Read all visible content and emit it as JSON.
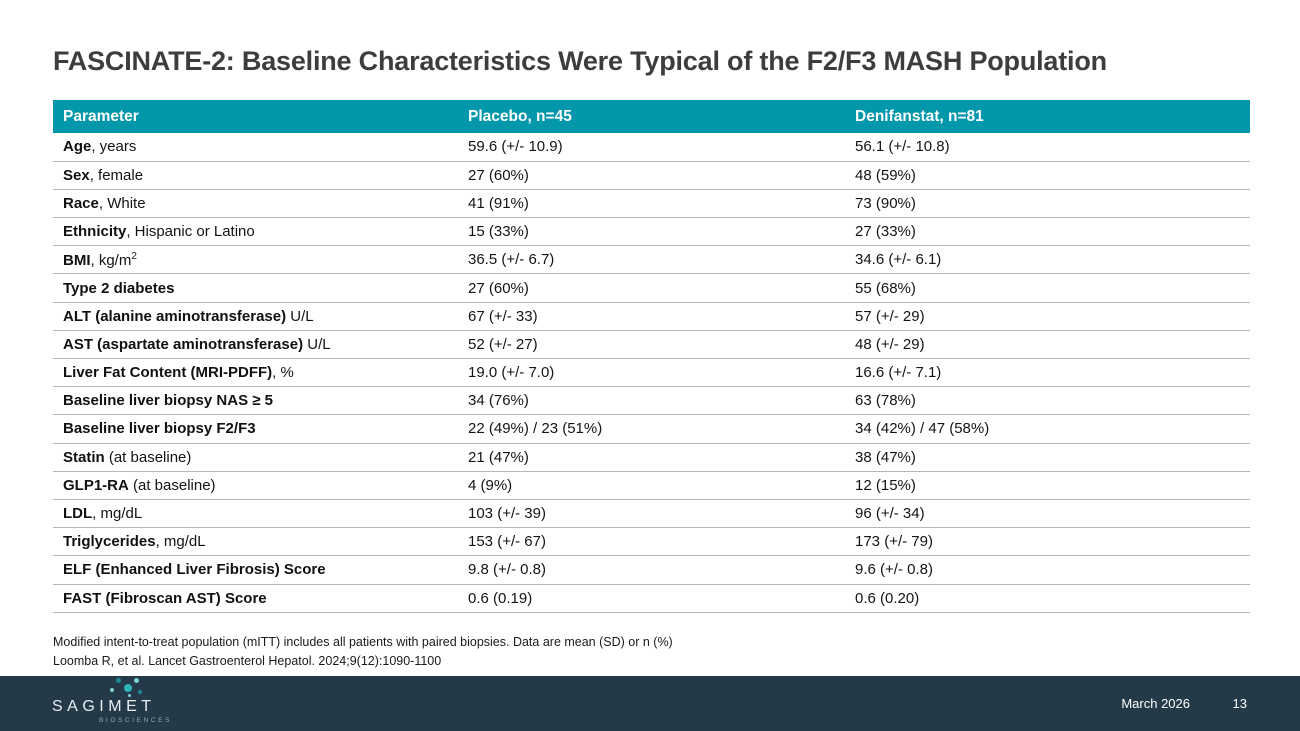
{
  "slide": {
    "title": "FASCINATE-2: Baseline Characteristics Were Typical of the F2/F3 MASH Population",
    "footnote1": "Modified intent-to-treat population (mITT) includes all patients with paired biopsies. Data are mean (SD) or n (%)",
    "footnote2": "Loomba R, et al. Lancet Gastroenterol Hepatol. 2024;9(12):1090-1100"
  },
  "table": {
    "headers": [
      "Parameter",
      "Placebo, n=45",
      "Denifanstat, n=81"
    ],
    "rows": [
      {
        "param_bold": "Age",
        "param_rest": ", years",
        "placebo": "59.6 (+/- 10.9)",
        "denifanstat": "56.1 (+/- 10.8)"
      },
      {
        "param_bold": "Sex",
        "param_rest": ", female",
        "placebo": "27 (60%)",
        "denifanstat": "48 (59%)"
      },
      {
        "param_bold": "Race",
        "param_rest": ", White",
        "placebo": "41 (91%)",
        "denifanstat": "73 (90%)"
      },
      {
        "param_bold": "Ethnicity",
        "param_rest": ", Hispanic or Latino",
        "placebo": "15 (33%)",
        "denifanstat": "27 (33%)"
      },
      {
        "param_bold": "BMI",
        "param_rest": ", kg/m",
        "param_sup": "2",
        "placebo": "36.5 (+/- 6.7)",
        "denifanstat": "34.6 (+/- 6.1)"
      },
      {
        "param_bold": "Type 2 diabetes",
        "param_rest": "",
        "placebo": "27 (60%)",
        "denifanstat": "55 (68%)"
      },
      {
        "param_bold": "ALT (alanine aminotransferase)",
        "param_rest": " U/L",
        "placebo": "67 (+/- 33)",
        "denifanstat": "57 (+/- 29)"
      },
      {
        "param_bold": "AST (aspartate aminotransferase)",
        "param_rest": " U/L",
        "placebo": "52 (+/- 27)",
        "denifanstat": "48 (+/- 29)"
      },
      {
        "param_bold": "Liver Fat Content (MRI-PDFF)",
        "param_rest": ", %",
        "placebo": "19.0 (+/- 7.0)",
        "denifanstat": "16.6 (+/- 7.1)"
      },
      {
        "param_bold": "Baseline liver biopsy NAS ≥ 5",
        "param_rest": "",
        "placebo": "34 (76%)",
        "denifanstat": "63 (78%)"
      },
      {
        "param_bold": "Baseline liver biopsy F2/F3",
        "param_rest": "",
        "placebo": "22 (49%) / 23 (51%)",
        "denifanstat": "34 (42%) / 47 (58%)"
      },
      {
        "param_bold": "Statin",
        "param_rest": " (at baseline)",
        "placebo": "21 (47%)",
        "denifanstat": "38 (47%)"
      },
      {
        "param_bold": "GLP1-RA",
        "param_rest": " (at baseline)",
        "placebo": "4 (9%)",
        "denifanstat": "12 (15%)"
      },
      {
        "param_bold": "LDL",
        "param_rest": ", mg/dL",
        "placebo": "103 (+/- 39)",
        "denifanstat": "96 (+/- 34)"
      },
      {
        "param_bold": "Triglycerides",
        "param_rest": ", mg/dL",
        "placebo": "153 (+/- 67)",
        "denifanstat": "173 (+/- 79)"
      },
      {
        "param_bold": "ELF (Enhanced Liver Fibrosis) Score",
        "param_rest": "",
        "placebo": "9.8 (+/- 0.8)",
        "denifanstat": "9.6 (+/- 0.8)"
      },
      {
        "param_bold": "FAST (Fibroscan AST) Score",
        "param_rest": "",
        "placebo": "0.6 (0.19)",
        "denifanstat": "0.6 (0.20)"
      }
    ]
  },
  "footer": {
    "logo_text": "SAGIMET",
    "logo_subtext": "BIOSCIENCES",
    "date": "March 2026",
    "page_number": "13"
  },
  "colors": {
    "header_bg": "#0397ab",
    "footer_bg": "#243a49",
    "accent_teal": "#2fb4bd"
  }
}
